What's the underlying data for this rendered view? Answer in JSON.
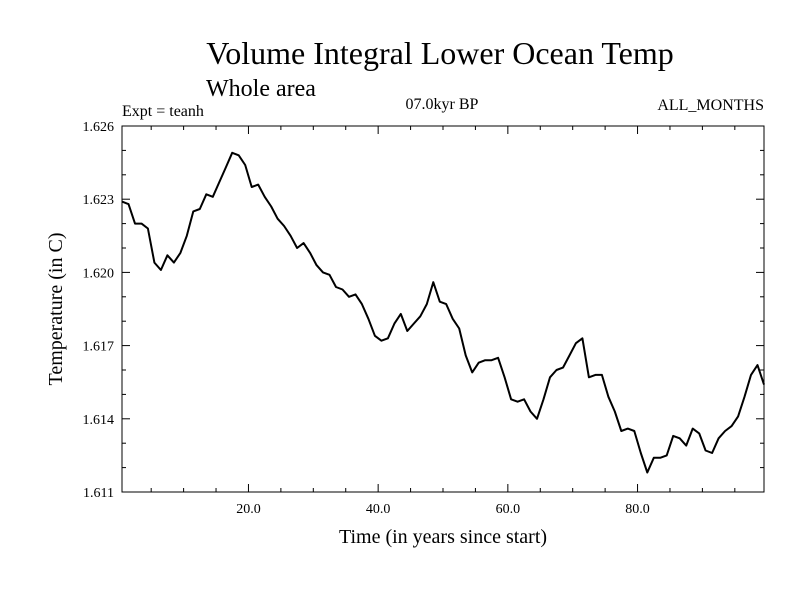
{
  "chart_data": {
    "type": "line",
    "title": "Volume Integral Lower Ocean Temp",
    "subtitle": "Whole area",
    "expt_label": "Expt = teanh",
    "period_label": "07.0kyr BP",
    "months_label": "ALL_MONTHS",
    "xlabel": "Time (in years since start)",
    "ylabel": "Temperature (in C)",
    "xlim": [
      0.5,
      99.5
    ],
    "ylim": [
      1.611,
      1.626
    ],
    "xticks": [
      20,
      40,
      60,
      80
    ],
    "xtick_labels": [
      "20.0",
      "40.0",
      "60.0",
      "80.0"
    ],
    "yticks": [
      1.611,
      1.614,
      1.617,
      1.62,
      1.623,
      1.626
    ],
    "ytick_labels": [
      "1.611",
      "1.614",
      "1.617",
      "1.620",
      "1.623",
      "1.626"
    ],
    "grid": false,
    "line_color": "#000000",
    "series": [
      {
        "name": "Volume Integral Lower Ocean Temp",
        "x": [
          0.5,
          1.5,
          2.5,
          3.5,
          4.5,
          5.5,
          6.5,
          7.5,
          8.5,
          9.5,
          10.5,
          11.5,
          12.5,
          13.5,
          14.5,
          15.5,
          16.5,
          17.5,
          18.5,
          19.5,
          20.5,
          21.5,
          22.5,
          23.5,
          24.5,
          25.5,
          26.5,
          27.5,
          28.5,
          29.5,
          30.5,
          31.5,
          32.5,
          33.5,
          34.5,
          35.5,
          36.5,
          37.5,
          38.5,
          39.5,
          40.5,
          41.5,
          42.5,
          43.5,
          44.5,
          45.5,
          46.5,
          47.5,
          48.5,
          49.5,
          50.5,
          51.5,
          52.5,
          53.5,
          54.5,
          55.5,
          56.5,
          57.5,
          58.5,
          59.5,
          60.5,
          61.5,
          62.5,
          63.5,
          64.5,
          65.5,
          66.5,
          67.5,
          68.5,
          69.5,
          70.5,
          71.5,
          72.5,
          73.5,
          74.5,
          75.5,
          76.5,
          77.5,
          78.5,
          79.5,
          80.5,
          81.5,
          82.5,
          83.5,
          84.5,
          85.5,
          86.5,
          87.5,
          88.5,
          89.5,
          90.5,
          91.5,
          92.5,
          93.5,
          94.5,
          95.5,
          96.5,
          97.5,
          98.5,
          99.5
        ],
        "values": [
          1.6229,
          1.6228,
          1.622,
          1.622,
          1.6218,
          1.6204,
          1.6201,
          1.6207,
          1.6204,
          1.6208,
          1.6215,
          1.6225,
          1.6226,
          1.6232,
          1.6231,
          1.6237,
          1.6243,
          1.6249,
          1.6248,
          1.6244,
          1.6235,
          1.6236,
          1.6231,
          1.6227,
          1.6222,
          1.6219,
          1.6215,
          1.621,
          1.6212,
          1.6208,
          1.6203,
          1.62,
          1.6199,
          1.6194,
          1.6193,
          1.619,
          1.6191,
          1.6187,
          1.6181,
          1.6174,
          1.6172,
          1.6173,
          1.6179,
          1.6183,
          1.6176,
          1.6179,
          1.6182,
          1.6187,
          1.6196,
          1.6188,
          1.6187,
          1.6181,
          1.6177,
          1.6166,
          1.6159,
          1.6163,
          1.6164,
          1.6164,
          1.6165,
          1.6157,
          1.6148,
          1.6147,
          1.6148,
          1.6143,
          1.614,
          1.6148,
          1.6157,
          1.616,
          1.6161,
          1.6166,
          1.6171,
          1.6173,
          1.6157,
          1.6158,
          1.6158,
          1.6149,
          1.6143,
          1.6135,
          1.6136,
          1.6135,
          1.6126,
          1.6118,
          1.6124,
          1.6124,
          1.6125,
          1.6133,
          1.6132,
          1.6129,
          1.6136,
          1.6134,
          1.6127,
          1.6126,
          1.6132,
          1.6135,
          1.6137,
          1.6141,
          1.6149,
          1.6158,
          1.6162,
          1.6154
        ]
      }
    ]
  }
}
